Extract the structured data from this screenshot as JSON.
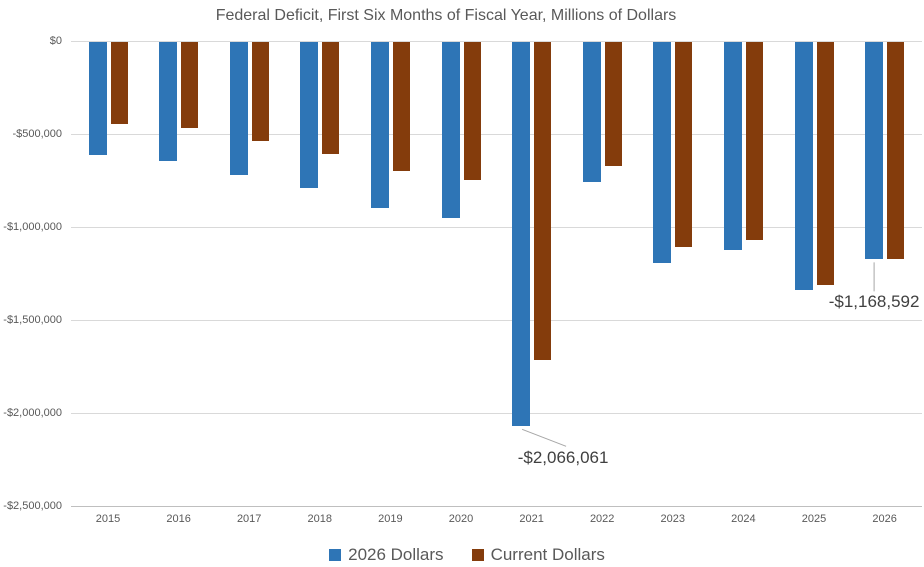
{
  "chart_data": {
    "type": "bar",
    "title": "Federal Deficit, First Six Months of Fiscal Year, Millions of Dollars",
    "categories": [
      "2015",
      "2016",
      "2017",
      "2018",
      "2019",
      "2020",
      "2021",
      "2022",
      "2023",
      "2024",
      "2025",
      "2026"
    ],
    "series": [
      {
        "name": "2026 Dollars",
        "color": "#2E75B6",
        "values": [
          -606000,
          -638000,
          -713000,
          -785000,
          -890000,
          -945000,
          -2066061,
          -755000,
          -1190000,
          -1120000,
          -1335000,
          -1168592
        ]
      },
      {
        "name": "Current Dollars",
        "color": "#843C0C",
        "values": [
          -441000,
          -462000,
          -530000,
          -600000,
          -691000,
          -744000,
          -1710000,
          -668000,
          -1101000,
          -1065000,
          -1307000,
          -1168592
        ]
      }
    ],
    "ylim": [
      -2500000,
      0
    ],
    "ytick_interval": 500000,
    "ytick_labels": [
      "$0",
      "-$500,000",
      "-$1,000,000",
      "-$1,500,000",
      "-$2,000,000",
      "-$2,500,000"
    ],
    "grid": true,
    "legend_position": "bottom",
    "annotations": [
      {
        "series": "2026 Dollars",
        "category": "2021",
        "value": -2066061,
        "text": "-$2,066,061"
      },
      {
        "series": "2026 Dollars",
        "category": "2026",
        "value": -1168592,
        "text": "-$1,168,592"
      }
    ]
  },
  "colors": {
    "series_2026_dollars": "#2E75B6",
    "series_current_dollars": "#843C0C",
    "gridline": "#D9D9D9",
    "axis_text": "#595959",
    "annotation_text": "#404040",
    "leader_line": "#A6A6A6"
  }
}
